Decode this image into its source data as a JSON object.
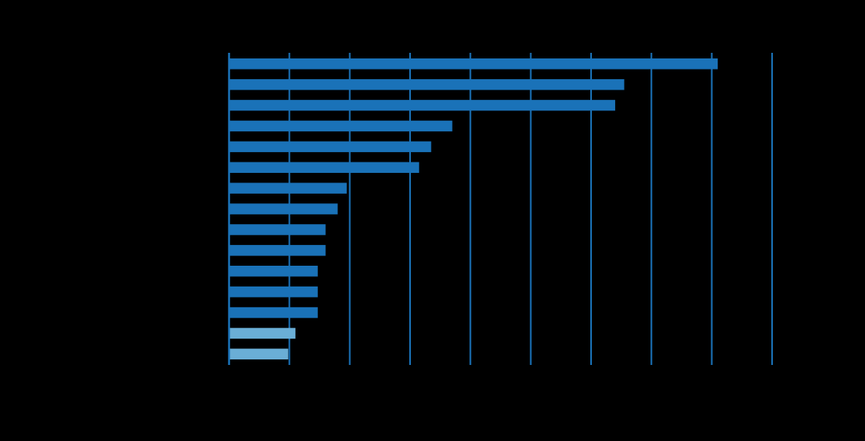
{
  "chart_data": {
    "type": "bar",
    "orientation": "horizontal",
    "title": "",
    "xlabel": "",
    "ylabel": "",
    "grid": true,
    "colors": {
      "background": "#000000",
      "bar_primary": "#1a72b8",
      "bar_secondary": "#6aaed6",
      "gridline": "#1a72b8"
    },
    "xlim": [
      0,
      9
    ],
    "values": [
      8.1,
      6.55,
      6.4,
      3.7,
      3.35,
      3.15,
      1.95,
      1.8,
      1.6,
      1.6,
      1.47,
      1.47,
      1.47,
      1.1,
      0.98
    ],
    "highlighted": [
      false,
      false,
      false,
      false,
      false,
      false,
      false,
      false,
      false,
      false,
      false,
      false,
      false,
      true,
      true
    ]
  }
}
